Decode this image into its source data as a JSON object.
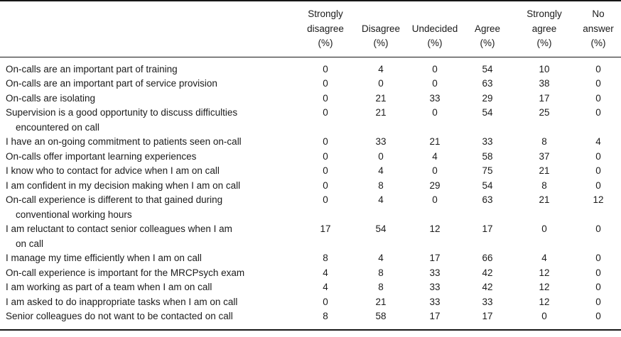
{
  "table": {
    "headers": [
      "Strongly\ndisagree\n(%)",
      "Disagree\n(%)",
      "Undecided\n(%)",
      "Agree\n(%)",
      "Strongly\nagree\n(%)",
      "No\nanswer\n(%)"
    ],
    "rows": [
      {
        "statement": "On-calls are an important part of training",
        "values": [
          0,
          4,
          0,
          54,
          10,
          0
        ]
      },
      {
        "statement": "On-calls are an important part of service provision",
        "values": [
          0,
          0,
          0,
          63,
          38,
          0
        ]
      },
      {
        "statement": "On-calls are isolating",
        "values": [
          0,
          21,
          33,
          29,
          17,
          0
        ]
      },
      {
        "statement": "Supervision is a good opportunity to discuss difficulties\nencountered on call",
        "values": [
          0,
          21,
          0,
          54,
          25,
          0
        ]
      },
      {
        "statement": "I have an on-going commitment to patients seen on-call",
        "values": [
          0,
          33,
          21,
          33,
          8,
          4
        ]
      },
      {
        "statement": "On-calls offer important learning experiences",
        "values": [
          0,
          0,
          4,
          58,
          37,
          0
        ]
      },
      {
        "statement": "I know who to contact for advice when I am on call",
        "values": [
          0,
          4,
          0,
          75,
          21,
          0
        ]
      },
      {
        "statement": "I am confident in my decision making when I am on call",
        "values": [
          0,
          8,
          29,
          54,
          8,
          0
        ]
      },
      {
        "statement": "On-call experience is different to that gained during\nconventional working hours",
        "values": [
          0,
          4,
          0,
          63,
          21,
          12
        ]
      },
      {
        "statement": "I am reluctant to contact senior colleagues when I am\non call",
        "values": [
          17,
          54,
          12,
          17,
          0,
          0
        ]
      },
      {
        "statement": "I manage my time efficiently when I am on call",
        "values": [
          8,
          4,
          17,
          66,
          4,
          0
        ]
      },
      {
        "statement": "On-call experience is important for the MRCPsych exam",
        "values": [
          4,
          8,
          33,
          42,
          12,
          0
        ]
      },
      {
        "statement": "I am working as part of a team when I am on call",
        "values": [
          4,
          8,
          33,
          42,
          12,
          0
        ]
      },
      {
        "statement": "I am asked to do inappropriate tasks when I am on call",
        "values": [
          0,
          21,
          33,
          33,
          12,
          0
        ]
      },
      {
        "statement": "Senior colleagues do not want to be contacted on call",
        "values": [
          8,
          58,
          17,
          17,
          0,
          0
        ]
      }
    ]
  }
}
